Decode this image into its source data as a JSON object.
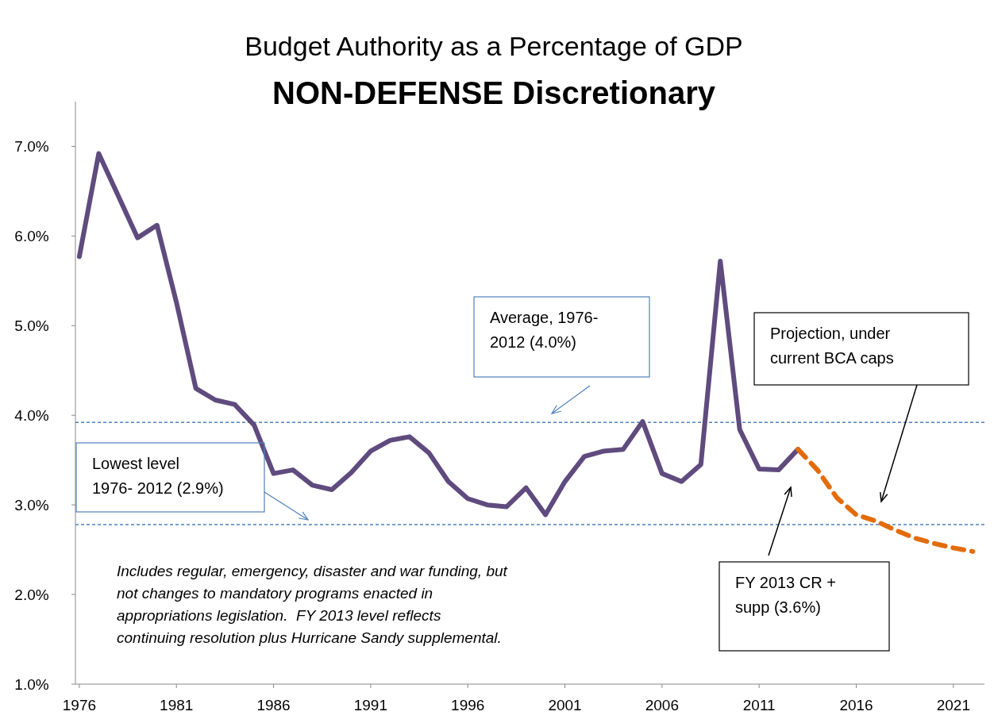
{
  "chart_data": {
    "type": "line",
    "title": "Budget Authority as a Percentage of GDP",
    "subtitle": "NON-DEFENSE Discretionary",
    "series": [
      {
        "color": "#5f4b7e",
        "line_style": "solid",
        "x": [
          1976,
          1977,
          1978,
          1979,
          1980,
          1981,
          1982,
          1983,
          1984,
          1985,
          1986,
          1987,
          1988,
          1989,
          1990,
          1991,
          1992,
          1993,
          1994,
          1995,
          1996,
          1997,
          1998,
          1999,
          2000,
          2001,
          2002,
          2003,
          2004,
          2005,
          2006,
          2007,
          2008,
          2009,
          2010,
          2011,
          2012,
          2013
        ],
        "values": [
          5.77,
          6.92,
          6.45,
          5.98,
          6.12,
          5.26,
          4.3,
          4.17,
          4.12,
          3.89,
          3.35,
          3.39,
          3.22,
          3.17,
          3.36,
          3.6,
          3.72,
          3.76,
          3.58,
          3.26,
          3.07,
          3.0,
          2.98,
          3.19,
          2.89,
          3.26,
          3.54,
          3.6,
          3.62,
          3.93,
          3.35,
          3.26,
          3.45,
          5.72,
          3.84,
          3.4,
          3.39,
          3.62
        ]
      },
      {
        "color": "#e36c0a",
        "line_style": "dashed",
        "x": [
          2013,
          2014,
          2015,
          2016,
          2017,
          2018,
          2019,
          2020,
          2021,
          2022
        ],
        "values": [
          3.62,
          3.39,
          3.08,
          2.89,
          2.82,
          2.72,
          2.63,
          2.57,
          2.52,
          2.48
        ]
      }
    ],
    "xlim": [
      1975.8,
      2022.6
    ],
    "xticks": [
      1976,
      1981,
      1986,
      1991,
      1996,
      2001,
      2006,
      2011,
      2016,
      2021
    ],
    "ylim": [
      1.0,
      7.5
    ],
    "yticks": [
      {
        "value": 1,
        "label": "1.0%"
      },
      {
        "value": 2,
        "label": "2.0%"
      },
      {
        "value": 3,
        "label": "3.0%"
      },
      {
        "value": 4,
        "label": "4.0%"
      },
      {
        "value": 5,
        "label": "5.0%"
      },
      {
        "value": 6,
        "label": "6.0%"
      },
      {
        "value": 7,
        "label": "7.0%"
      }
    ],
    "ref_lines": [
      {
        "axis": "y",
        "value": 3.92,
        "color": "#4f81bd",
        "line_style": "dashed"
      },
      {
        "axis": "y",
        "value": 2.78,
        "color": "#4f81bd",
        "line_style": "dashed"
      }
    ],
    "annotations": [
      "Average, 1976- 2012 (4.0%)",
      "Lowest level 1976- 2012 (2.9%)",
      "FY 2013 CR + supp (3.6%)",
      "Projection, under current BCA caps",
      "Includes regular, emergency, disaster and war funding, but not changes to mandatory programs enacted in appropriations legislation.  FY 2013 level reflects continuing resolution plus Hurricane Sandy supplemental."
    ],
    "grid": false
  }
}
